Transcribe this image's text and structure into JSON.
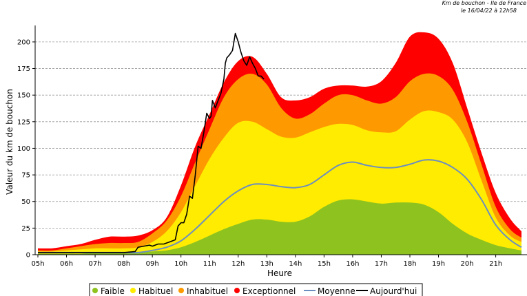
{
  "header": {
    "line1": "Km de bouchon - Ile de France",
    "line2": "le 16/04/22 à 12h58"
  },
  "chart_data": {
    "type": "area",
    "title": "Km de bouchon - Ile de France",
    "subtitle": "le 16/04/22 à 12h58",
    "xlabel": "Heure",
    "ylabel": "Valeur du  km de bouchon",
    "xlim": [
      5,
      21.9
    ],
    "ylim": [
      0,
      220
    ],
    "grid": true,
    "legend_position": "bottom",
    "categories": [
      "05h",
      "06h",
      "07h",
      "08h",
      "09h",
      "10h",
      "11h",
      "12h",
      "13h",
      "14h",
      "15h",
      "16h",
      "17h",
      "18h",
      "19h",
      "20h",
      "21h"
    ],
    "yticks": [
      0,
      25,
      50,
      75,
      100,
      125,
      150,
      175,
      200
    ],
    "x": [
      5,
      5.5,
      6,
      6.5,
      7,
      7.5,
      8,
      8.5,
      9,
      9.5,
      10,
      10.5,
      11,
      11.5,
      12,
      12.5,
      13,
      13.5,
      14,
      14.5,
      15,
      15.5,
      16,
      16.5,
      17,
      17.5,
      18,
      18.5,
      19,
      19.5,
      20,
      20.5,
      21,
      21.5,
      21.9
    ],
    "series": [
      {
        "name": "Faible",
        "color": "#8dc21f",
        "values": [
          1,
          1,
          1,
          1,
          2,
          2,
          2,
          2,
          3,
          4,
          7,
          12,
          18,
          24,
          29,
          33,
          33,
          31,
          31,
          36,
          45,
          51,
          52,
          50,
          48,
          49,
          49,
          47,
          40,
          29,
          20,
          14,
          9,
          6,
          4
        ]
      },
      {
        "name": "Habituel",
        "color": "#ffec00",
        "values": [
          3,
          3,
          4,
          5,
          6,
          6,
          6,
          7,
          12,
          22,
          40,
          65,
          90,
          110,
          124,
          125,
          118,
          111,
          110,
          115,
          120,
          123,
          122,
          117,
          115,
          116,
          127,
          135,
          134,
          127,
          106,
          70,
          35,
          18,
          12
        ]
      },
      {
        "name": "Inhabituel",
        "color": "#ff9900",
        "values": [
          4,
          4,
          6,
          8,
          10,
          11,
          11,
          12,
          20,
          32,
          55,
          87,
          118,
          148,
          165,
          170,
          160,
          138,
          128,
          132,
          142,
          150,
          150,
          145,
          142,
          148,
          163,
          170,
          168,
          155,
          125,
          85,
          45,
          24,
          16
        ]
      },
      {
        "name": "Exceptionnel",
        "color": "#ff0000",
        "values": [
          6,
          6,
          8,
          10,
          14,
          17,
          17,
          18,
          23,
          35,
          65,
          102,
          132,
          162,
          182,
          186,
          170,
          148,
          145,
          148,
          156,
          159,
          159,
          158,
          163,
          180,
          205,
          209,
          203,
          180,
          138,
          96,
          58,
          34,
          22
        ]
      },
      {
        "name": "Moyenne",
        "color": "#6c8ebf",
        "values": [
          2,
          2,
          2,
          2,
          2,
          2,
          2,
          2,
          4,
          7,
          13,
          24,
          37,
          50,
          60,
          66,
          66,
          64,
          63,
          66,
          75,
          84,
          87,
          84,
          82,
          82,
          85,
          89,
          88,
          82,
          71,
          52,
          28,
          14,
          7
        ]
      }
    ],
    "today": {
      "name": "Aujourd'hui",
      "color": "#000000",
      "x": [
        5,
        8,
        8.4,
        8.5,
        8.7,
        8.9,
        9,
        9.2,
        9.4,
        9.6,
        9.8,
        9.9,
        10,
        10.1,
        10.2,
        10.3,
        10.4,
        10.5,
        10.6,
        10.7,
        10.8,
        10.9,
        11,
        11.05,
        11.1,
        11.2,
        11.3,
        11.4,
        11.5,
        11.55,
        11.6,
        11.7,
        11.8,
        11.9,
        12,
        12.1,
        12.2,
        12.3,
        12.4,
        12.5,
        12.6,
        12.7,
        12.8,
        12.9
      ],
      "values": [
        2,
        2,
        3,
        7,
        8,
        9,
        8,
        10,
        10,
        12,
        14,
        27,
        30,
        30,
        38,
        55,
        53,
        75,
        102,
        100,
        115,
        133,
        128,
        130,
        145,
        138,
        145,
        152,
        165,
        180,
        185,
        188,
        192,
        208,
        200,
        190,
        182,
        178,
        186,
        180,
        175,
        168,
        168,
        165
      ]
    }
  }
}
